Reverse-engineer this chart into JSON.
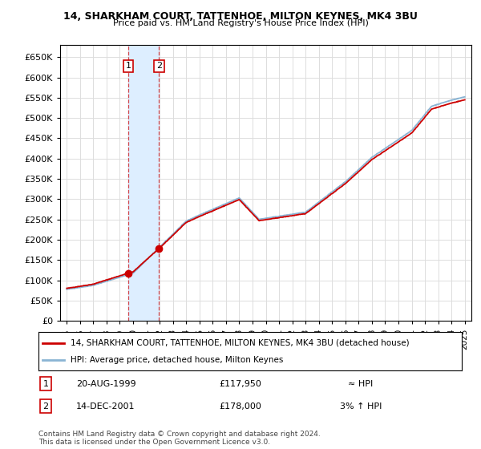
{
  "title": "14, SHARKHAM COURT, TATTENHOE, MILTON KEYNES, MK4 3BU",
  "subtitle": "Price paid vs. HM Land Registry's House Price Index (HPI)",
  "legend_line1": "14, SHARKHAM COURT, TATTENHOE, MILTON KEYNES, MK4 3BU (detached house)",
  "legend_line2": "HPI: Average price, detached house, Milton Keynes",
  "footer1": "Contains HM Land Registry data © Crown copyright and database right 2024.",
  "footer2": "This data is licensed under the Open Government Licence v3.0.",
  "sale1_label": "1",
  "sale1_date": "20-AUG-1999",
  "sale1_price": "£117,950",
  "sale1_relation": "≈ HPI",
  "sale1_year": 1999.63,
  "sale1_value": 117950,
  "sale2_label": "2",
  "sale2_date": "14-DEC-2001",
  "sale2_price": "£178,000",
  "sale2_relation": "3% ↑ HPI",
  "sale2_year": 2001.95,
  "sale2_value": 178000,
  "ylim": [
    0,
    680000
  ],
  "yticks": [
    0,
    50000,
    100000,
    150000,
    200000,
    250000,
    300000,
    350000,
    400000,
    450000,
    500000,
    550000,
    600000,
    650000
  ],
  "xlabel_years": [
    1995,
    1996,
    1997,
    1998,
    1999,
    2000,
    2001,
    2002,
    2003,
    2004,
    2005,
    2006,
    2007,
    2008,
    2009,
    2010,
    2011,
    2012,
    2013,
    2014,
    2015,
    2016,
    2017,
    2018,
    2019,
    2020,
    2021,
    2022,
    2023,
    2024,
    2025
  ],
  "red_line_color": "#cc0000",
  "blue_line_color": "#8ab4d4",
  "shade_color": "#ddeeff",
  "box_edge_color": "#cc0000",
  "grid_color": "#dddddd",
  "bg_color": "#ffffff"
}
